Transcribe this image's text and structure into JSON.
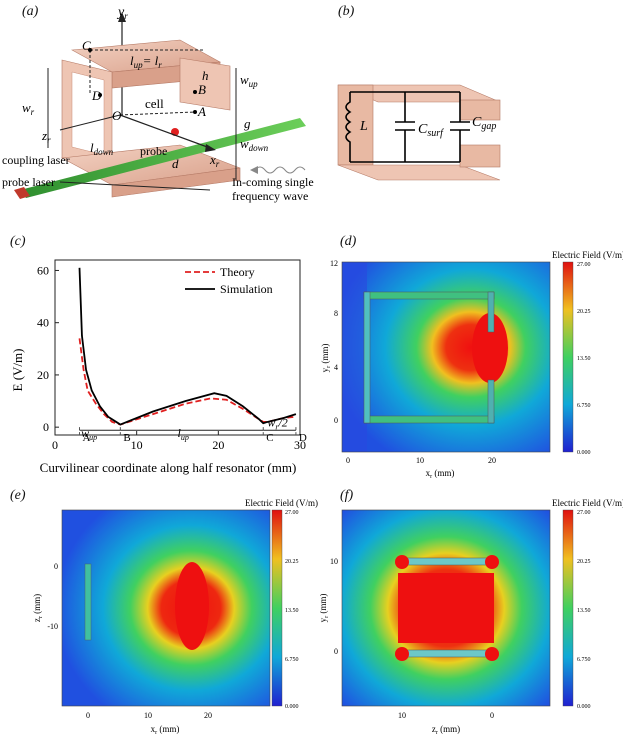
{
  "panels": {
    "a": {
      "label": "(a)"
    },
    "b": {
      "label": "(b)"
    },
    "c": {
      "label": "(c)"
    },
    "d": {
      "label": "(d)"
    },
    "e": {
      "label": "(e)"
    },
    "f": {
      "label": "(f)"
    }
  },
  "diagram_a": {
    "yr": "y",
    "yr_sub": "r",
    "zr": "z",
    "zr_sub": "r",
    "xr": "x",
    "xr_sub": "r",
    "O": "O",
    "C": "C",
    "D": "D",
    "B": "B",
    "A": "A",
    "cell": "cell",
    "lup": "l",
    "lup_sub": "up",
    "eq": "= l",
    "eq_sub": "r",
    "h": "h",
    "wup": "w",
    "wup_sub": "up",
    "wr": "w",
    "wr_sub": "r",
    "g": "g",
    "wdown": "w",
    "wdown_sub": "down",
    "ldown": "l",
    "ldown_sub": "down",
    "probe": "probe",
    "d": "d",
    "coupling": "coupling laser",
    "probe_laser": "probe laser",
    "wave1": "In-coming single",
    "wave2": "frequency wave"
  },
  "diagram_b": {
    "L": "L",
    "csurf": "C",
    "csurf_sub": "surf",
    "cgap": "C",
    "cgap_sub": "gap"
  },
  "chart_data": [
    {
      "type": "line",
      "panel": "c",
      "ylabel": "E (V/m)",
      "xlabel": "Curvilinear coordinate along half resonator (mm)",
      "xlim": [
        0,
        30
      ],
      "ylim": [
        -3,
        64
      ],
      "xticks": [
        "0",
        "10",
        "20",
        "30"
      ],
      "yticks": [
        "0",
        "20",
        "40",
        "60"
      ],
      "series": [
        {
          "name": "Theory",
          "color": "#e02020",
          "dash": true,
          "x": [
            3,
            3.5,
            4,
            5,
            6,
            7,
            8,
            12,
            16,
            19,
            21,
            23,
            25,
            25.5,
            26,
            28,
            29.5
          ],
          "y": [
            34,
            22,
            14,
            9,
            5,
            2,
            1,
            5,
            9,
            11,
            10.5,
            7,
            3,
            2,
            2,
            3.5,
            4
          ]
        },
        {
          "name": "Simulation",
          "color": "#000000",
          "dash": false,
          "x": [
            3,
            3.3,
            3.8,
            4.5,
            5.5,
            6.5,
            7.5,
            8,
            12,
            16,
            19.5,
            21,
            23,
            25,
            25.5,
            26,
            28,
            29.5
          ],
          "y": [
            61,
            35,
            22,
            14,
            8,
            4,
            2,
            1,
            6,
            10,
            13,
            12,
            8,
            3,
            1.5,
            2,
            3.5,
            5
          ]
        }
      ],
      "markers": [
        {
          "x": 3,
          "label": "A"
        },
        {
          "x": 8,
          "label": "B"
        },
        {
          "x": 25.5,
          "label": "C"
        },
        {
          "x": 29.5,
          "label": "D"
        }
      ],
      "annotations": {
        "wup": "w",
        "wup_sub": "up",
        "lup": "l",
        "lup_sub": "up",
        "wr2": "w",
        "wr2_sub": "r",
        "wr2_tail": "/2"
      }
    }
  ],
  "heatmaps": {
    "d": {
      "title": "Electric Field (V/m)",
      "xlabel": "x",
      "xlabel_sub": "r",
      "xunit": " (mm)",
      "ylabel": "y",
      "ylabel_sub": "r",
      "yunit": " (mm)",
      "xticks": [
        "0",
        "10",
        "20"
      ],
      "yticks": [
        "0",
        "4",
        "8",
        "12"
      ],
      "cbar": [
        "27.00",
        "20.25",
        "13.50",
        "6.750",
        "0.000"
      ]
    },
    "e": {
      "title": "Electric Field (V/m)",
      "xlabel": "x",
      "xlabel_sub": "r",
      "xunit": " (mm)",
      "ylabel": "z",
      "ylabel_sub": "r",
      "yunit": " (mm)",
      "xticks": [
        "0",
        "10",
        "20"
      ],
      "yticks": [
        "0",
        "-10"
      ],
      "cbar": [
        "27.00",
        "20.25",
        "13.50",
        "6.750",
        "0.000"
      ]
    },
    "f": {
      "title": "Electric Field (V/m)",
      "xlabel": "z",
      "xlabel_sub": "r",
      "xunit": " (mm)",
      "ylabel": "y",
      "ylabel_sub": "r",
      "yunit": " (mm)",
      "xticks": [
        "10",
        "0"
      ],
      "yticks": [
        "10",
        "0"
      ],
      "cbar": [
        "27.00",
        "20.25",
        "13.50",
        "6.750",
        "0.000"
      ]
    }
  },
  "colors": {
    "copper": "#e8b9a3",
    "copper_dark": "#c98d78",
    "beam_green": "#3aa43a",
    "beam_red": "#c0392b",
    "field_low": "#2828d8",
    "field_high": "#ee1010"
  }
}
